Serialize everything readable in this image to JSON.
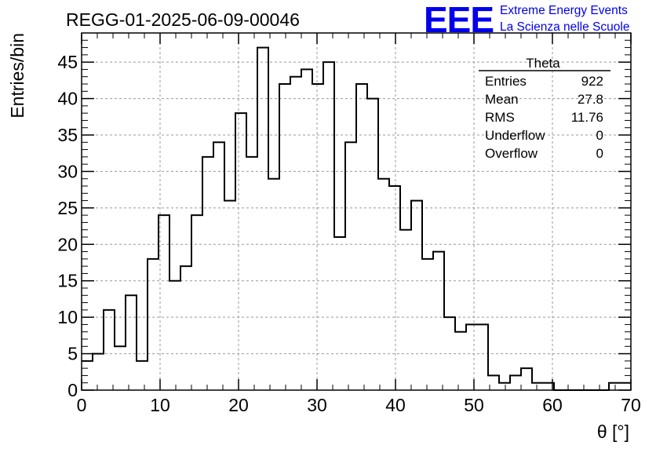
{
  "header": {
    "run_title": "REGG-01-2025-06-09-00046",
    "logo_text": "EEE",
    "logo_line1": "Extreme Energy Events",
    "logo_line2": "La Scienza nelle Scuole"
  },
  "stats_box": {
    "title": "Theta",
    "rows": [
      {
        "label": "Entries",
        "value": "922"
      },
      {
        "label": "Mean",
        "value": "27.8"
      },
      {
        "label": "RMS",
        "value": "11.76"
      },
      {
        "label": "Underflow",
        "value": "0"
      },
      {
        "label": "Overflow",
        "value": "0"
      }
    ]
  },
  "colors": {
    "logo": "#0000ee",
    "line": "#000000",
    "grid": "#999999"
  },
  "chart_data": {
    "type": "bar",
    "style": "step-histogram",
    "xlabel": "θ [°]",
    "ylabel": "Entries/bin",
    "xlim": [
      0,
      70
    ],
    "ylim": [
      0,
      49
    ],
    "grid": true,
    "bin_width": 1.4,
    "x_ticks": [
      "0",
      "10",
      "20",
      "30",
      "40",
      "50",
      "60",
      "70"
    ],
    "y_ticks": [
      "0",
      "5",
      "10",
      "15",
      "20",
      "25",
      "30",
      "35",
      "40",
      "45"
    ],
    "bin_edges_start": 0,
    "values": [
      4,
      5,
      11,
      6,
      13,
      4,
      18,
      24,
      15,
      17,
      24,
      32,
      34,
      26,
      38,
      32,
      47,
      29,
      42,
      43,
      44,
      42,
      45,
      21,
      34,
      42,
      40,
      29,
      28,
      22,
      26,
      18,
      19,
      10,
      8,
      9,
      9,
      2,
      1,
      2,
      3,
      1,
      1,
      0,
      0,
      0,
      0,
      0,
      1,
      1
    ]
  }
}
